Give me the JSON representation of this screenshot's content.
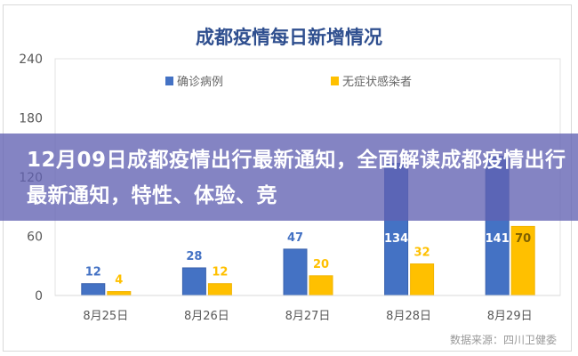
{
  "chart_data": {
    "type": "bar",
    "title": "成都疫情每日新增情况",
    "categories": [
      "8月25日",
      "8月26日",
      "8月27日",
      "8月28日",
      "8月29日"
    ],
    "series": [
      {
        "name": "确诊病例",
        "values": [
          12,
          28,
          47,
          134,
          141
        ],
        "color": "#4472c4"
      },
      {
        "name": "无症状感染者",
        "values": [
          4,
          12,
          20,
          32,
          70
        ],
        "color": "#ffc000"
      }
    ],
    "yticks": [
      0,
      60,
      120,
      180,
      240
    ],
    "ylim": [
      0,
      240
    ],
    "legend": "top",
    "grid": false
  },
  "banner": {
    "text": "12月09日成都疫情出行最新通知，全面解读成都疫情出行最新通知，特性、体验、竞"
  },
  "source": "数据来源：四川卫健委"
}
